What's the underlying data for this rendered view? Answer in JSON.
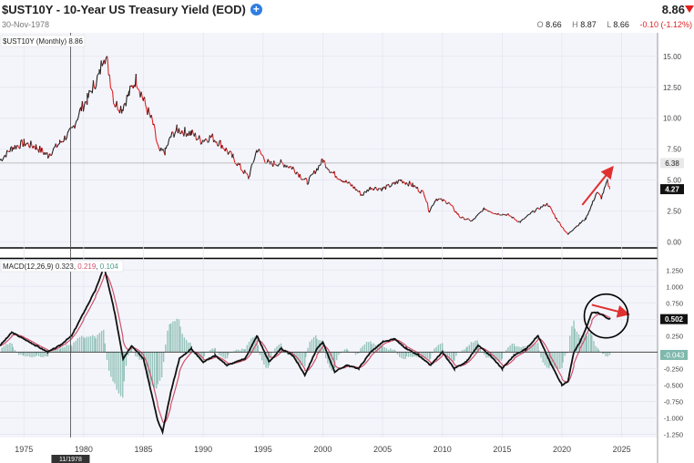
{
  "header": {
    "title": "$UST10Y - 10-Year US Treasury Yield (EOD)",
    "date": "30-Nov-1978",
    "last": "8.86",
    "open_label": "O",
    "open": "8.66",
    "high_label": "H",
    "high": "8.87",
    "low_label": "L",
    "low": "8.66",
    "change": "-0.10 (-1.12%)"
  },
  "colors": {
    "up": "#222222",
    "down": "#e02020",
    "macd": "#111111",
    "signal": "#d0506a",
    "hist": "#7fb8ad",
    "arrow": "#e03030"
  },
  "chart_data": [
    {
      "type": "line",
      "legend": "$UST10Y (Monthly) 8.86",
      "x": [
        1973.0,
        1974.0,
        1975.0,
        1976.0,
        1977.0,
        1978.0,
        1979.0,
        1979.8,
        1980.3,
        1980.8,
        1981.3,
        1981.7,
        1982.0,
        1982.6,
        1983.2,
        1983.8,
        1984.4,
        1985.0,
        1985.8,
        1986.3,
        1986.8,
        1987.3,
        1987.8,
        1988.5,
        1989.0,
        1989.8,
        1990.7,
        1991.5,
        1992.5,
        1993.3,
        1993.8,
        1994.5,
        1995.5,
        1996.5,
        1997.5,
        1998.7,
        1999.5,
        2000.0,
        2000.8,
        2001.7,
        2002.5,
        2003.3,
        2004.0,
        2005.0,
        2006.0,
        2006.5,
        2007.5,
        2008.5,
        2008.9,
        2009.5,
        2010.5,
        2011.5,
        2012.5,
        2013.5,
        2014.5,
        2015.5,
        2016.5,
        2017.5,
        2018.8,
        2019.6,
        2020.5,
        2021.0,
        2021.5,
        2022.0,
        2022.5,
        2022.9,
        2023.3,
        2023.8,
        2024.0
      ],
      "y": [
        6.6,
        7.6,
        8.0,
        7.7,
        7.0,
        8.0,
        9.0,
        10.8,
        11.5,
        12.6,
        13.5,
        15.3,
        14.4,
        11.2,
        10.8,
        12.0,
        13.2,
        11.5,
        9.5,
        7.3,
        7.3,
        8.5,
        9.1,
        8.9,
        8.8,
        8.2,
        8.5,
        7.9,
        6.8,
        5.8,
        5.2,
        7.5,
        6.3,
        6.4,
        6.0,
        4.8,
        5.9,
        6.6,
        5.6,
        5.0,
        4.5,
        3.8,
        4.4,
        4.3,
        4.7,
        5.0,
        4.6,
        3.9,
        2.5,
        3.5,
        3.2,
        2.0,
        1.7,
        2.7,
        2.3,
        2.2,
        1.6,
        2.4,
        3.1,
        1.8,
        0.6,
        1.1,
        1.5,
        1.9,
        3.0,
        4.0,
        3.6,
        4.9,
        4.27
      ],
      "ylim": [
        -0.4,
        16.9
      ],
      "ticks": [
        "15.00",
        "12.50",
        "10.00",
        "7.50",
        "5.00",
        "2.50",
        "0.00"
      ],
      "tick_values": [
        15,
        12.5,
        10,
        7.5,
        5,
        2.5,
        0
      ],
      "marker_label": "6.38",
      "marker_value": 6.38,
      "current_label": "4.27",
      "current_value": 4.27,
      "arrow": {
        "from": [
          2021.7,
          3.0
        ],
        "to": [
          2024.2,
          6.0
        ]
      }
    },
    {
      "type": "line",
      "legend": "MACD(12,26,9)",
      "legend_values": [
        "0.323",
        "0.219",
        "0.104"
      ],
      "x": [
        1973.0,
        1974.0,
        1975.0,
        1976.0,
        1977.0,
        1978.0,
        1979.0,
        1980.0,
        1981.0,
        1981.7,
        1982.6,
        1983.3,
        1984.0,
        1985.0,
        1986.2,
        1986.6,
        1987.3,
        1988.0,
        1989.0,
        1990.0,
        1991.0,
        1992.0,
        1993.5,
        1994.5,
        1995.5,
        1996.5,
        1997.5,
        1998.5,
        1999.5,
        2000.0,
        2001.0,
        2002.0,
        2003.0,
        2004.0,
        2005.0,
        2006.0,
        2007.0,
        2008.0,
        2009.0,
        2010.0,
        2011.0,
        2012.0,
        2013.0,
        2014.0,
        2015.0,
        2016.0,
        2017.0,
        2018.0,
        2019.0,
        2020.0,
        2020.5,
        2021.0,
        2021.5,
        2022.0,
        2022.5,
        2023.0,
        2023.5,
        2024.0
      ],
      "y": [
        0.1,
        0.3,
        0.2,
        0.1,
        0.0,
        0.1,
        0.25,
        0.6,
        0.95,
        1.3,
        0.6,
        -0.1,
        0.1,
        -0.1,
        -1.05,
        -1.22,
        -0.6,
        -0.1,
        0.05,
        -0.15,
        -0.05,
        -0.2,
        -0.1,
        0.25,
        -0.15,
        0.05,
        -0.05,
        -0.35,
        0.05,
        0.15,
        -0.3,
        -0.2,
        -0.25,
        0.0,
        0.15,
        0.2,
        0.05,
        -0.05,
        -0.2,
        0.0,
        -0.25,
        -0.15,
        0.1,
        -0.05,
        -0.25,
        -0.05,
        0.05,
        0.25,
        -0.15,
        -0.5,
        -0.45,
        0.0,
        0.15,
        0.35,
        0.6,
        0.6,
        0.55,
        0.5
      ],
      "ylim": [
        -1.3,
        1.42
      ],
      "ticks": [
        "1.250",
        "1.000",
        "0.750",
        "0.500",
        "0.250",
        "0.000",
        "-0.250",
        "-0.500",
        "-0.750",
        "-1.000",
        "-1.250"
      ],
      "tick_values": [
        1.25,
        1,
        0.75,
        0.5,
        0.25,
        0,
        -0.25,
        -0.5,
        -0.75,
        -1,
        -1.25
      ],
      "marker_label": "0.502",
      "marker_value": 0.502,
      "zero_label": "-0.043",
      "zero_value": -0.043,
      "arrow": {
        "from": [
          2022.5,
          0.72
        ],
        "to": [
          2025.5,
          0.58
        ]
      },
      "circle": {
        "center": [
          2023.7,
          0.55
        ]
      }
    }
  ],
  "xaxis": {
    "labels": [
      "1975",
      "1980",
      "1985",
      "1990",
      "1995",
      "2000",
      "2005",
      "2010",
      "2015",
      "2020",
      "2025"
    ],
    "values": [
      1975,
      1980,
      1985,
      1990,
      1995,
      2000,
      2005,
      2010,
      2015,
      2020,
      2025
    ],
    "xlim": [
      1973.0,
      2028.0
    ],
    "crosshair_label": "11/1978",
    "crosshair_value": 1978.9
  }
}
